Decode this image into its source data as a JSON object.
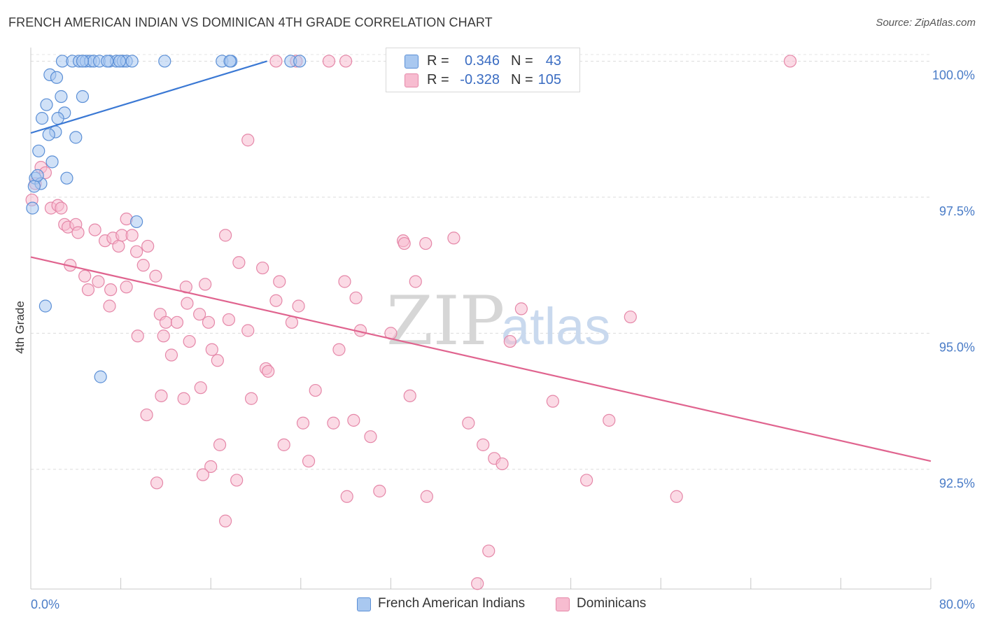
{
  "header": {
    "title": "FRENCH AMERICAN INDIAN VS DOMINICAN 4TH GRADE CORRELATION CHART",
    "source": "Source: ZipAtlas.com"
  },
  "legend": {
    "rows": [
      {
        "r_label": "R =",
        "r_value": "0.346",
        "n_label": "N =",
        "n_value": "43",
        "color": "#a9c8f0",
        "stroke": "#5b8fd6"
      },
      {
        "r_label": "R =",
        "r_value": "-0.328",
        "n_label": "N =",
        "n_value": "105",
        "color": "#f7bcd0",
        "stroke": "#e587a8"
      }
    ]
  },
  "bottom_legend": [
    {
      "label": "French American Indians",
      "color": "#a9c8f0",
      "stroke": "#5b8fd6"
    },
    {
      "label": "Dominicans",
      "color": "#f7bcd0",
      "stroke": "#e587a8"
    }
  ],
  "watermark": {
    "zip": "ZIP",
    "atlas": "atlas"
  },
  "chart_data": {
    "type": "scatter",
    "title": "FRENCH AMERICAN INDIAN VS DOMINICAN 4TH GRADE CORRELATION CHART",
    "xlabel": "",
    "ylabel": "4th Grade",
    "xlim": [
      0,
      80
    ],
    "ylim": [
      90.3,
      100.25
    ],
    "x_tick_labels": [
      "0.0%",
      "80.0%"
    ],
    "y_ticks": [
      92.5,
      95.0,
      97.5,
      100.0
    ],
    "y_tick_labels": [
      "92.5%",
      "95.0%",
      "97.5%",
      "100.0%"
    ],
    "colors": {
      "blue_line": "#3a78d4",
      "pink_line": "#e0648f"
    },
    "series": [
      {
        "name": "French American Indians",
        "fill": "#a9c8f0",
        "stroke": "#5b8fd6",
        "trend": {
          "x0": 0,
          "y0": 98.68,
          "x1": 21,
          "y1": 100.0
        },
        "points": [
          [
            2.8,
            100
          ],
          [
            3.7,
            100
          ],
          [
            4.3,
            100
          ],
          [
            4.9,
            100
          ],
          [
            5.3,
            100
          ],
          [
            5.6,
            100
          ],
          [
            6.1,
            100
          ],
          [
            7.0,
            100
          ],
          [
            7.6,
            100
          ],
          [
            8.2,
            100
          ],
          [
            8.5,
            100
          ],
          [
            9.0,
            100
          ],
          [
            11.9,
            100
          ],
          [
            17.0,
            100
          ],
          [
            17.8,
            100
          ],
          [
            23.1,
            100
          ],
          [
            23.9,
            100
          ],
          [
            1.7,
            99.75
          ],
          [
            2.3,
            99.7
          ],
          [
            2.7,
            99.35
          ],
          [
            1.4,
            99.2
          ],
          [
            4.6,
            99.35
          ],
          [
            3.0,
            99.05
          ],
          [
            2.4,
            98.95
          ],
          [
            1.0,
            98.95
          ],
          [
            2.2,
            98.7
          ],
          [
            1.6,
            98.65
          ],
          [
            4.0,
            98.6
          ],
          [
            0.7,
            98.35
          ],
          [
            1.9,
            98.15
          ],
          [
            0.4,
            97.85
          ],
          [
            0.9,
            97.75
          ],
          [
            3.2,
            97.85
          ],
          [
            0.15,
            97.3
          ],
          [
            9.4,
            97.05
          ],
          [
            1.3,
            95.5
          ],
          [
            6.2,
            94.2
          ],
          [
            0.3,
            97.7
          ],
          [
            4.6,
            100
          ],
          [
            6.8,
            100
          ],
          [
            7.9,
            100
          ],
          [
            17.7,
            100
          ],
          [
            0.6,
            97.9
          ]
        ]
      },
      {
        "name": "Dominicans",
        "fill": "#f7bcd0",
        "stroke": "#e587a8",
        "trend": {
          "x0": 0,
          "y0": 96.4,
          "x1": 80,
          "y1": 92.65
        },
        "points": [
          [
            21.8,
            100
          ],
          [
            23.6,
            100
          ],
          [
            26.5,
            100
          ],
          [
            28.0,
            100
          ],
          [
            32.5,
            100
          ],
          [
            67.5,
            100
          ],
          [
            19.3,
            98.55
          ],
          [
            0.9,
            98.05
          ],
          [
            1.3,
            97.95
          ],
          [
            0.4,
            97.75
          ],
          [
            0.1,
            97.45
          ],
          [
            1.8,
            97.3
          ],
          [
            2.4,
            97.35
          ],
          [
            2.7,
            97.3
          ],
          [
            3.0,
            97.0
          ],
          [
            3.3,
            96.95
          ],
          [
            4.0,
            97.0
          ],
          [
            4.2,
            96.85
          ],
          [
            5.7,
            96.9
          ],
          [
            6.6,
            96.7
          ],
          [
            7.3,
            96.75
          ],
          [
            7.8,
            96.6
          ],
          [
            8.1,
            96.8
          ],
          [
            8.5,
            97.1
          ],
          [
            9.0,
            96.8
          ],
          [
            9.4,
            96.5
          ],
          [
            10.4,
            96.6
          ],
          [
            8.5,
            95.85
          ],
          [
            10.0,
            96.25
          ],
          [
            11.1,
            96.05
          ],
          [
            3.5,
            96.25
          ],
          [
            4.8,
            96.05
          ],
          [
            5.1,
            95.8
          ],
          [
            6.0,
            95.95
          ],
          [
            7.0,
            95.5
          ],
          [
            7.1,
            95.8
          ],
          [
            11.5,
            95.35
          ],
          [
            12.0,
            95.2
          ],
          [
            11.8,
            94.95
          ],
          [
            12.5,
            94.6
          ],
          [
            13.0,
            95.2
          ],
          [
            13.8,
            95.85
          ],
          [
            15.0,
            95.35
          ],
          [
            15.5,
            95.9
          ],
          [
            15.8,
            95.2
          ],
          [
            16.1,
            94.7
          ],
          [
            16.6,
            94.5
          ],
          [
            17.6,
            95.25
          ],
          [
            13.9,
            95.55
          ],
          [
            14.1,
            94.85
          ],
          [
            17.3,
            96.8
          ],
          [
            18.5,
            96.3
          ],
          [
            19.3,
            95.05
          ],
          [
            20.6,
            96.2
          ],
          [
            20.9,
            94.35
          ],
          [
            21.1,
            94.3
          ],
          [
            21.8,
            95.6
          ],
          [
            22.1,
            95.95
          ],
          [
            23.2,
            95.2
          ],
          [
            23.8,
            95.5
          ],
          [
            11.6,
            93.85
          ],
          [
            13.6,
            93.8
          ],
          [
            15.1,
            94.0
          ],
          [
            10.3,
            93.5
          ],
          [
            9.5,
            94.95
          ],
          [
            19.6,
            93.8
          ],
          [
            22.5,
            92.95
          ],
          [
            24.2,
            93.35
          ],
          [
            24.7,
            92.65
          ],
          [
            27.4,
            94.7
          ],
          [
            27.9,
            95.95
          ],
          [
            28.9,
            95.65
          ],
          [
            29.3,
            95.05
          ],
          [
            28.7,
            93.4
          ],
          [
            30.2,
            93.1
          ],
          [
            33.1,
            96.7
          ],
          [
            33.2,
            96.65
          ],
          [
            33.7,
            93.85
          ],
          [
            34.2,
            95.95
          ],
          [
            37.6,
            96.75
          ],
          [
            38.9,
            93.35
          ],
          [
            40.2,
            92.95
          ],
          [
            41.2,
            92.7
          ],
          [
            40.7,
            91.0
          ],
          [
            39.7,
            90.4
          ],
          [
            42.6,
            94.85
          ],
          [
            43.6,
            95.45
          ],
          [
            46.4,
            93.75
          ],
          [
            49.4,
            92.3
          ],
          [
            51.4,
            93.4
          ],
          [
            53.3,
            95.3
          ],
          [
            57.4,
            92.0
          ],
          [
            11.2,
            92.25
          ],
          [
            17.3,
            91.55
          ],
          [
            16.0,
            92.55
          ],
          [
            16.8,
            92.95
          ],
          [
            15.3,
            92.4
          ],
          [
            28.1,
            92.0
          ],
          [
            31.0,
            92.1
          ],
          [
            35.2,
            92.0
          ],
          [
            41.9,
            92.6
          ],
          [
            35.1,
            96.65
          ],
          [
            26.9,
            93.35
          ],
          [
            18.3,
            92.3
          ],
          [
            25.3,
            93.95
          ],
          [
            32.0,
            95.0
          ]
        ]
      }
    ]
  }
}
